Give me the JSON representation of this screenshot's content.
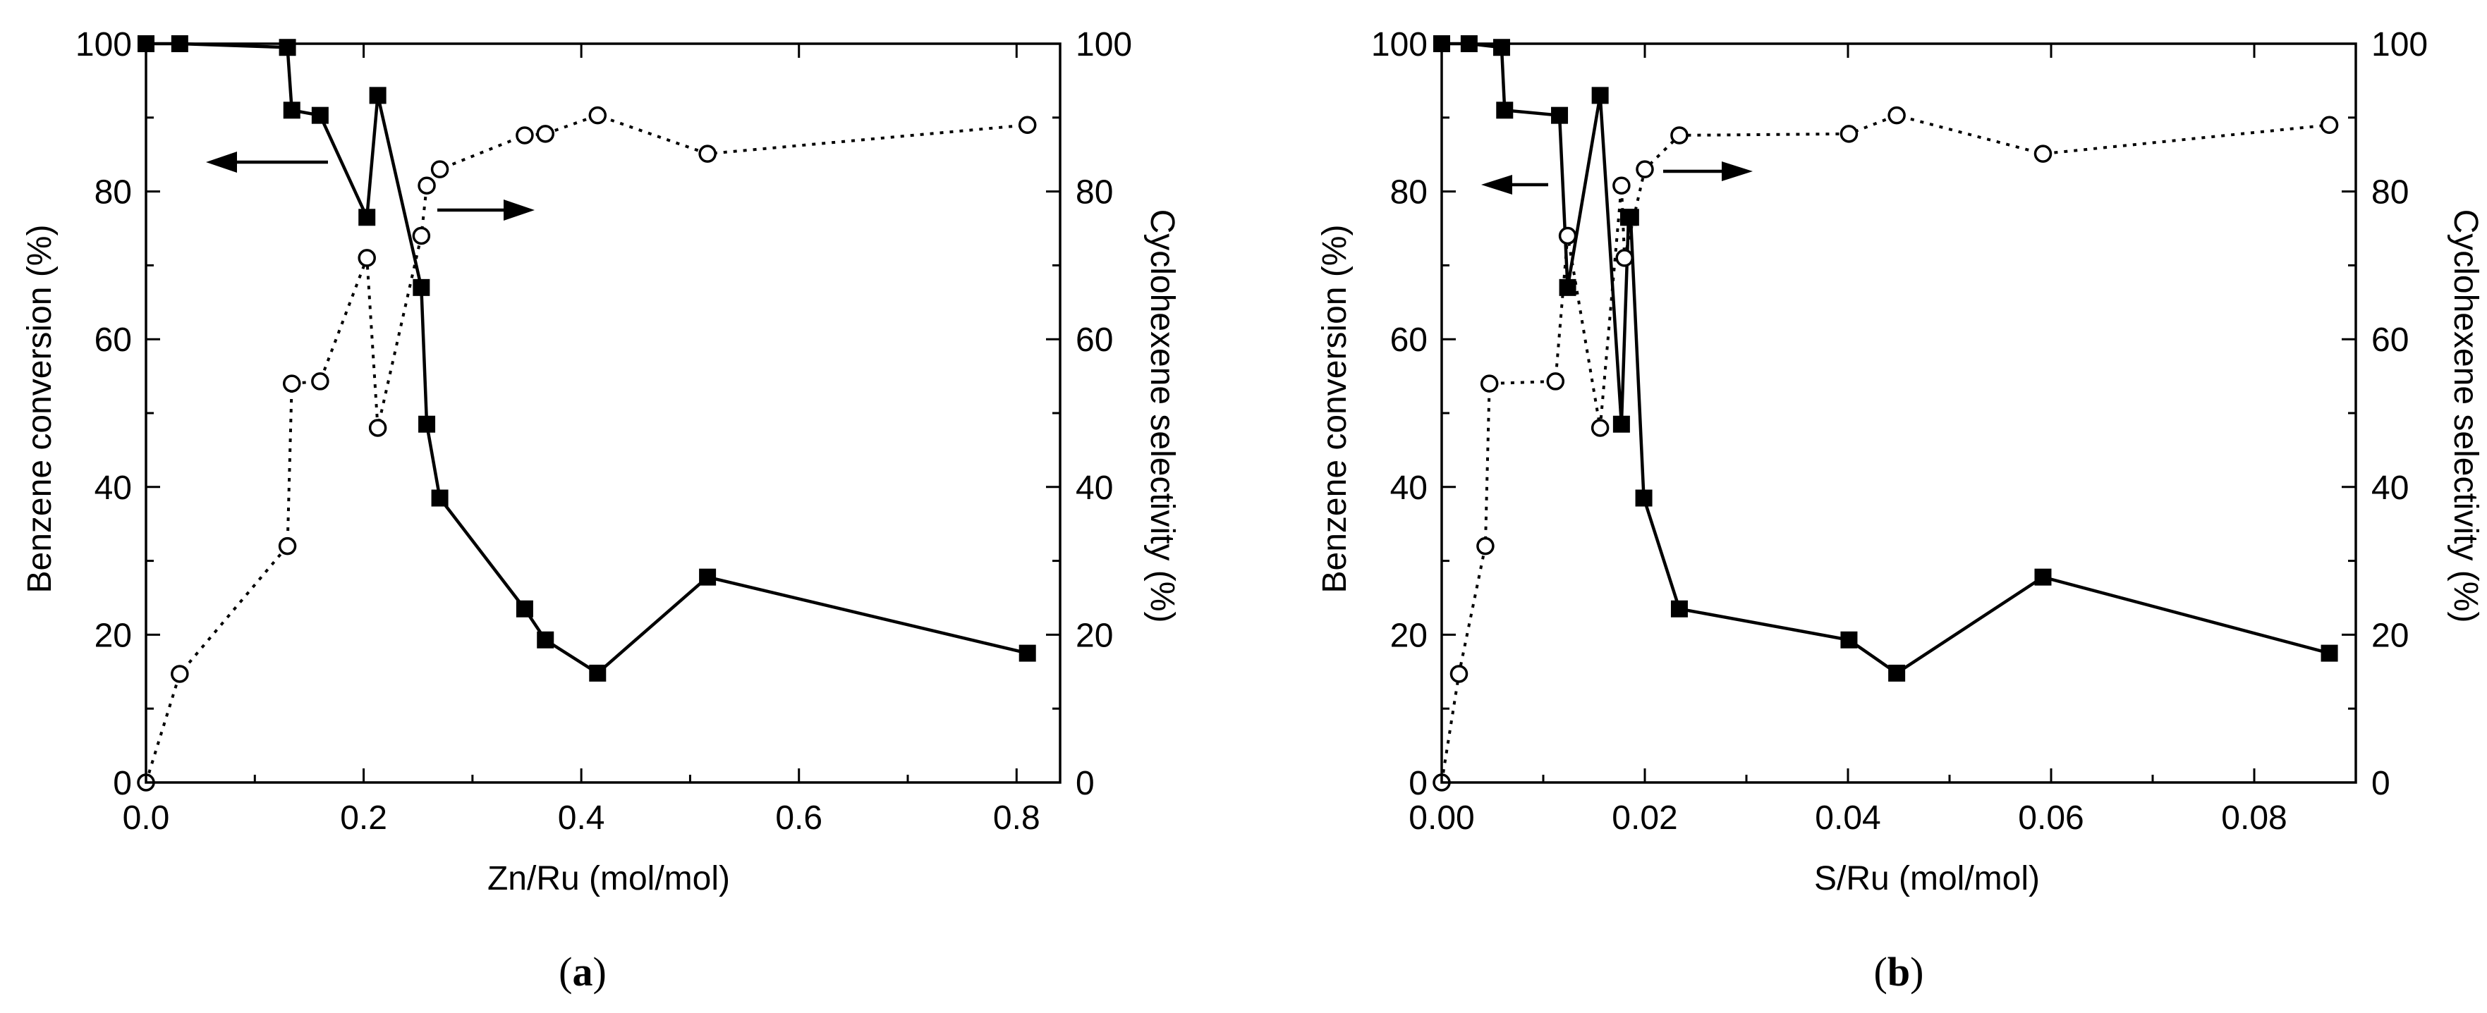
{
  "chart_data": [
    {
      "type": "line",
      "panel_label": "a",
      "xlabel": "Zn/Ru (mol/mol)",
      "ylabel_left": "Benzene conversion (%)",
      "ylabel_right": "Cyclohexene selectivity (%)",
      "xlim": [
        0,
        0.84
      ],
      "ylim": [
        0,
        100
      ],
      "x_ticks": [
        0.0,
        0.2,
        0.4,
        0.6,
        0.8
      ],
      "x_tick_labels": [
        "0.0",
        "0.2",
        "0.4",
        "0.6",
        "0.8"
      ],
      "y_ticks": [
        0,
        20,
        40,
        60,
        80,
        100
      ],
      "y_tick_labels": [
        "0",
        "20",
        "40",
        "60",
        "80",
        "100"
      ],
      "series": [
        {
          "name": "Benzene conversion",
          "axis": "left",
          "marker": "filled-square",
          "line": "solid",
          "x": [
            0.0,
            0.031,
            0.13,
            0.134,
            0.16,
            0.203,
            0.213,
            0.253,
            0.258,
            0.27,
            0.348,
            0.367,
            0.415,
            0.516,
            0.81
          ],
          "y": [
            100,
            100,
            99.5,
            91,
            90.3,
            76.5,
            93,
            67,
            48.5,
            38.5,
            23.5,
            19.3,
            14.8,
            27.8,
            17.5
          ]
        },
        {
          "name": "Cyclohexene selectivity",
          "axis": "right",
          "marker": "open-circle",
          "line": "dotted",
          "x": [
            0.0,
            0.031,
            0.13,
            0.134,
            0.16,
            0.203,
            0.213,
            0.253,
            0.258,
            0.27,
            0.348,
            0.367,
            0.415,
            0.516,
            0.81
          ],
          "y": [
            0,
            14.7,
            32,
            54,
            54.3,
            71,
            48,
            74,
            80.8,
            83,
            87.6,
            87.8,
            90.3,
            85.1,
            89
          ]
        }
      ],
      "annotations": [
        {
          "text": "",
          "description": "arrow pointing left toward conversion axis"
        },
        {
          "text": "",
          "description": "arrow pointing right toward selectivity axis"
        }
      ]
    },
    {
      "type": "line",
      "panel_label": "b",
      "xlabel": "S/Ru (mol/mol)",
      "ylabel_left": "Benzene conversion (%)",
      "ylabel_right": "Cyclohexene selectivity (%)",
      "xlim": [
        0,
        0.09
      ],
      "ylim": [
        0,
        100
      ],
      "x_ticks": [
        0.0,
        0.02,
        0.04,
        0.06,
        0.08
      ],
      "x_tick_labels": [
        "0.00",
        "0.02",
        "0.04",
        "0.06",
        "0.08"
      ],
      "y_ticks": [
        0,
        20,
        40,
        60,
        80,
        100
      ],
      "y_tick_labels": [
        "0",
        "20",
        "40",
        "60",
        "80",
        "100"
      ],
      "series": [
        {
          "name": "Benzene conversion",
          "axis": "left",
          "marker": "filled-square",
          "line": "solid",
          "x": [
            0.0,
            0.0027,
            0.0059,
            0.0062,
            0.0116,
            0.0124,
            0.0156,
            0.0177,
            0.0184,
            0.0186,
            0.0199,
            0.0234,
            0.0401,
            0.0448,
            0.0592,
            0.0874
          ],
          "y": [
            100,
            100,
            99.5,
            91,
            90.3,
            67,
            93,
            48.5,
            76.5,
            76.5,
            38.5,
            23.5,
            19.3,
            14.8,
            27.8,
            17.5
          ]
        },
        {
          "name": "Cyclohexene selectivity",
          "axis": "right",
          "marker": "open-circle",
          "line": "dotted",
          "x": [
            0.0,
            0.0017,
            0.0043,
            0.0047,
            0.0112,
            0.0124,
            0.0156,
            0.0177,
            0.018,
            0.02,
            0.0234,
            0.0401,
            0.0448,
            0.0592,
            0.0874
          ],
          "y": [
            0,
            14.7,
            32,
            54,
            54.3,
            74,
            48,
            80.8,
            71,
            83,
            87.6,
            87.8,
            90.3,
            85.1,
            89
          ]
        }
      ],
      "annotations": [
        {
          "text": "",
          "description": "arrow pointing left toward conversion axis"
        },
        {
          "text": "",
          "description": "arrow pointing right toward selectivity axis"
        }
      ]
    }
  ],
  "figure": {
    "panels": [
      {
        "label_open": "(",
        "label": "a",
        "label_close": ")"
      },
      {
        "label_open": "(",
        "label": "b",
        "label_close": ")"
      }
    ]
  }
}
